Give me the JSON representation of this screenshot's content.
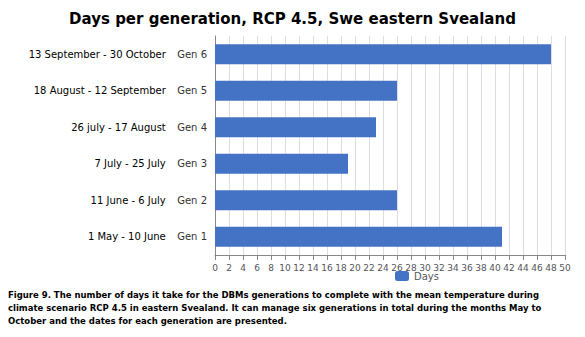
{
  "chart_data": {
    "type": "bar",
    "orientation": "horizontal",
    "title": "Days per generation, RCP 4.5, Swe eastern Svealand",
    "categories": [
      "Gen 1",
      "Gen 2",
      "Gen 3",
      "Gen 4",
      "Gen 5",
      "Gen 6"
    ],
    "annotations": [
      "1 May - 10 June",
      "11 June - 6 July",
      "7 July - 25 July",
      "26 july - 17 August",
      "18 August - 12 September",
      "13 September - 30 October"
    ],
    "series": [
      {
        "name": "Days",
        "color": "#4472C4",
        "values": [
          41,
          26,
          19,
          23,
          26,
          48
        ]
      }
    ],
    "xlim": [
      0,
      50
    ],
    "xticks": [
      0,
      2,
      4,
      6,
      8,
      10,
      12,
      14,
      16,
      18,
      20,
      22,
      24,
      26,
      28,
      30,
      32,
      34,
      36,
      38,
      40,
      42,
      44,
      46,
      48,
      50
    ],
    "grid": true,
    "legend": "bottom",
    "caption": "Figure 9. The number of days it take for the DBMs generations to complete with the mean temperature during\nclimate scenario RCP 4.5 in eastern Svealand. It can manage six generations in total during the months May to\nOctober and the dates for each generation are presented."
  }
}
